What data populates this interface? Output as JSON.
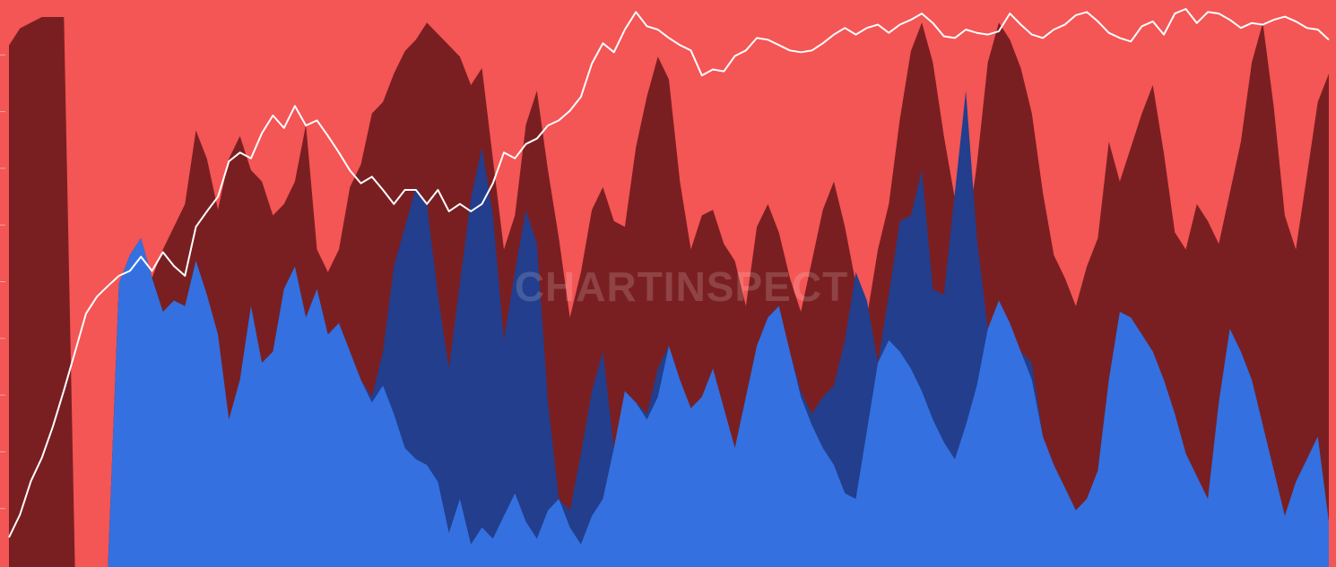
{
  "watermark": "CHARTINSPECT",
  "chart_data": {
    "type": "area",
    "stacked_percent": true,
    "ylim": [
      0,
      100
    ],
    "price_axis": "log",
    "grid": false,
    "legend": "none",
    "x": [
      0,
      1,
      2,
      3,
      4,
      5,
      6,
      7,
      8,
      9,
      10,
      11,
      12,
      13,
      14,
      15,
      16,
      17,
      18,
      19,
      20,
      21,
      22,
      23,
      24,
      25,
      26,
      27,
      28,
      29,
      30,
      31,
      32,
      33,
      34,
      35,
      36,
      37,
      38,
      39,
      40,
      41,
      42,
      43,
      44,
      45,
      46,
      47,
      48,
      49,
      50,
      51,
      52,
      53,
      54,
      55,
      56,
      57,
      58,
      59,
      60,
      61,
      62,
      63,
      64,
      65,
      66,
      67,
      68,
      69,
      70,
      71,
      72,
      73,
      74,
      75,
      76,
      77,
      78,
      79,
      80,
      81,
      82,
      83,
      84,
      85,
      86,
      87,
      88,
      89,
      90,
      91,
      92,
      93,
      94,
      95,
      96,
      97,
      98,
      99,
      100,
      101,
      102,
      103,
      104,
      105,
      106,
      107,
      108,
      109,
      110,
      111,
      112,
      113,
      114,
      115,
      116,
      117,
      118,
      119,
      120
    ],
    "series": [
      {
        "color": "#3470e0",
        "values": [
          0,
          0,
          0,
          0,
          0,
          0,
          0,
          0,
          0,
          0,
          50,
          55,
          58,
          51,
          45,
          47,
          46,
          54,
          48,
          41,
          26,
          33,
          46,
          36,
          38,
          49,
          53,
          44,
          49,
          41,
          43,
          38,
          33,
          29,
          32,
          27,
          21,
          19,
          18,
          15,
          6,
          12,
          4,
          7,
          5,
          9,
          13,
          8,
          5,
          10,
          12,
          7,
          4,
          9,
          12,
          21,
          31,
          29,
          26,
          30,
          39,
          33,
          28,
          30,
          35,
          28,
          21,
          30,
          39,
          44,
          46,
          38,
          30,
          25,
          21,
          18,
          13,
          12,
          24,
          36,
          40,
          38,
          35,
          31,
          26,
          22,
          19,
          25,
          32,
          42,
          47,
          43,
          38,
          33,
          23,
          18,
          14,
          10,
          12,
          17,
          33,
          45,
          44,
          41,
          38,
          33,
          27,
          20,
          16,
          12,
          29,
          42,
          38,
          33,
          25,
          17,
          9,
          15,
          19,
          23,
          8
        ]
      },
      {
        "color": "#223e8d",
        "values": [
          0,
          0,
          0,
          0,
          0,
          0,
          0,
          0,
          0,
          0,
          50,
          55,
          58,
          51,
          45,
          47,
          46,
          54,
          48,
          41,
          26,
          33,
          46,
          36,
          38,
          49,
          53,
          44,
          49,
          41,
          43,
          38,
          33,
          30,
          38,
          53,
          60,
          67,
          64,
          48,
          35,
          50,
          65,
          74,
          62,
          40,
          52,
          63,
          57,
          29,
          12,
          10,
          20,
          31,
          38,
          21,
          31,
          29,
          27,
          35,
          39,
          33,
          28,
          30,
          35,
          28,
          21,
          30,
          39,
          44,
          46,
          38,
          31,
          27,
          30,
          32,
          40,
          52,
          47,
          36,
          48,
          61,
          62,
          70,
          49,
          48,
          66,
          84,
          58,
          42,
          47,
          43,
          38,
          36,
          23,
          18,
          14,
          10,
          12,
          17,
          33,
          45,
          44,
          41,
          38,
          33,
          27,
          20,
          16,
          12,
          29,
          42,
          38,
          33,
          25,
          17,
          9,
          15,
          19,
          23,
          8
        ]
      },
      {
        "color": "#7a1f21",
        "values": [
          92,
          95,
          96,
          97,
          97,
          97,
          0,
          0,
          0,
          0,
          50,
          55,
          58,
          51,
          56,
          60,
          64,
          77,
          72,
          63,
          72,
          76,
          70,
          68,
          62,
          64,
          68,
          78,
          56,
          52,
          56,
          67,
          71,
          80,
          82,
          87,
          91,
          93,
          96,
          94,
          92,
          90,
          85,
          88,
          72,
          56,
          62,
          78,
          84,
          70,
          58,
          44,
          52,
          63,
          67,
          61,
          60,
          74,
          83,
          90,
          86,
          68,
          56,
          62,
          63,
          57,
          54,
          46,
          60,
          64,
          59,
          51,
          45,
          54,
          63,
          68,
          60,
          50,
          44,
          56,
          64,
          79,
          91,
          96,
          89,
          76,
          65,
          57,
          71,
          89,
          96,
          93,
          88,
          80,
          66,
          55,
          51,
          46,
          53,
          58,
          75,
          68,
          74,
          80,
          85,
          73,
          59,
          56,
          64,
          61,
          57,
          66,
          75,
          89,
          96,
          81,
          62,
          56,
          69,
          82,
          87
        ]
      }
    ],
    "price_line": {
      "color": "#ffffff",
      "values": [
        1.4,
        1.55,
        1.8,
        2.0,
        2.3,
        2.7,
        3.2,
        3.8,
        4.1,
        4.3,
        4.5,
        4.6,
        4.9,
        4.6,
        5.0,
        4.7,
        4.5,
        5.6,
        6.0,
        6.4,
        7.5,
        7.8,
        7.6,
        8.5,
        9.2,
        8.7,
        9.6,
        8.8,
        9.0,
        8.4,
        7.8,
        7.2,
        6.8,
        7.0,
        6.6,
        6.2,
        6.6,
        6.6,
        6.2,
        6.6,
        6.0,
        6.2,
        6.0,
        6.2,
        6.8,
        7.8,
        7.6,
        8.1,
        8.3,
        8.8,
        9.0,
        9.4,
        10.0,
        11.6,
        12.7,
        12.2,
        13.5,
        14.6,
        13.7,
        13.5,
        13.0,
        12.6,
        12.3,
        11.0,
        11.3,
        11.2,
        12.0,
        12.3,
        13.0,
        12.9,
        12.6,
        12.3,
        12.2,
        12.3,
        12.7,
        13.2,
        13.6,
        13.2,
        13.6,
        13.8,
        13.3,
        13.8,
        14.1,
        14.5,
        13.9,
        13.1,
        13.0,
        13.5,
        13.3,
        13.2,
        13.4,
        14.5,
        13.8,
        13.2,
        13.0,
        13.5,
        13.8,
        14.4,
        14.6,
        14.0,
        13.3,
        13.0,
        12.8,
        13.7,
        14.0,
        13.2,
        14.5,
        14.8,
        13.9,
        14.6,
        14.5,
        14.1,
        13.6,
        13.9,
        13.8,
        14.1,
        14.3,
        14.0,
        13.6,
        13.5,
        12.9
      ]
    }
  }
}
